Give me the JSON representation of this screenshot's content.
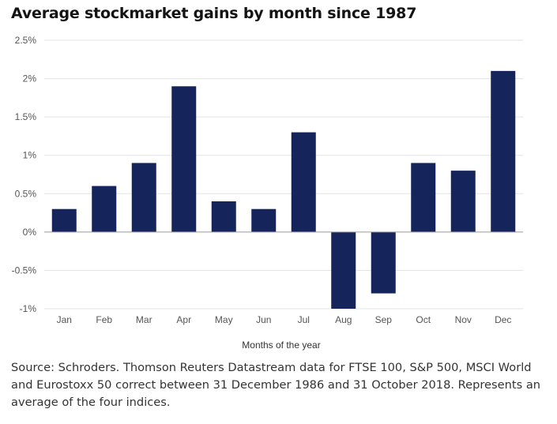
{
  "title": "Average stockmarket gains by month since 1987",
  "source": "Source: Schroders. Thomson Reuters Datastream data for FTSE 100, S&P 500, MSCI World and Eurostoxx 50 correct between 31 December 1986 and 31 October 2018. Represents an average of the four indices.",
  "chart_data": {
    "type": "bar",
    "title": "Average stockmarket gains by month since 1987",
    "xlabel": "Months of the year",
    "ylabel": "",
    "categories": [
      "Jan",
      "Feb",
      "Mar",
      "Apr",
      "May",
      "Jun",
      "Jul",
      "Aug",
      "Sep",
      "Oct",
      "Nov",
      "Dec"
    ],
    "values": [
      0.3,
      0.6,
      0.9,
      1.9,
      0.4,
      0.3,
      1.3,
      -1.0,
      -0.8,
      0.9,
      0.8,
      2.1
    ],
    "ylim": [
      -1,
      2.5
    ],
    "yticks": [
      -1,
      -0.5,
      0,
      0.5,
      1,
      1.5,
      2,
      2.5
    ],
    "ytick_labels": [
      "-1%",
      "-0.5%",
      "0%",
      "0.5%",
      "1%",
      "1.5%",
      "2%",
      "2.5%"
    ],
    "grid": true,
    "legend": "none",
    "colors": {
      "bar": "#15245a",
      "grid": "#e3e3e3",
      "zero_line": "#9a9a9a"
    }
  }
}
